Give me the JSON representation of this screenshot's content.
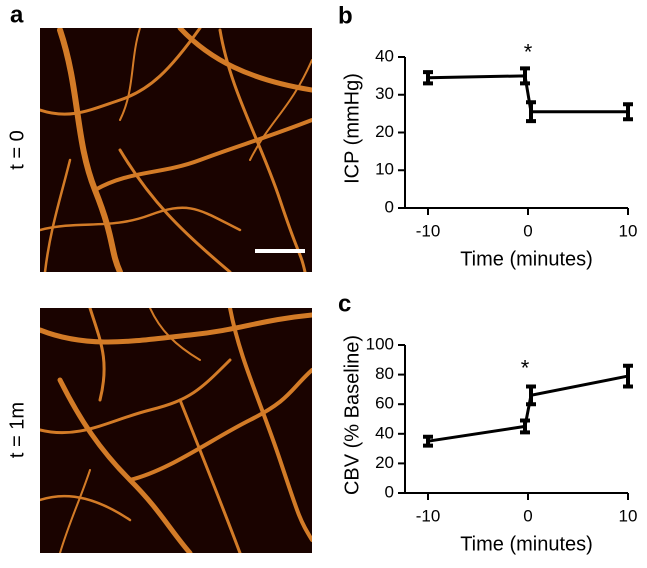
{
  "panel_a": {
    "label": "a",
    "images": [
      "t = 0",
      "t = 1m"
    ]
  },
  "chart_data": [
    {
      "type": "line",
      "panel_label": "b",
      "x_label": "Time (minutes)",
      "y_label": "ICP (mmHg)",
      "x": [
        -10,
        -0.3,
        0.3,
        10
      ],
      "series": [
        {
          "color": "#000000",
          "values": [
            34.5,
            35,
            25.5,
            25.5
          ],
          "errors": [
            1.5,
            2,
            2.5,
            2
          ]
        }
      ],
      "xlim": [
        -12.3,
        10
      ],
      "xticks": [
        -10,
        0,
        10
      ],
      "ylim": [
        0,
        40
      ],
      "yticks": [
        0,
        10,
        20,
        30,
        40
      ],
      "annotations": [
        {
          "text": "*",
          "x": 0,
          "y": 42
        }
      ]
    },
    {
      "type": "line",
      "panel_label": "c",
      "x_label": "Time (minutes)",
      "y_label": "CBV (% Baseline)",
      "x": [
        -10,
        -0.3,
        0.3,
        10
      ],
      "series": [
        {
          "color": "#000000",
          "values": [
            35,
            45,
            66,
            79
          ],
          "errors": [
            3,
            4,
            6,
            7
          ]
        }
      ],
      "xlim": [
        -12.3,
        10
      ],
      "xticks": [
        -10,
        0,
        10
      ],
      "ylim": [
        0,
        100
      ],
      "yticks": [
        0,
        20,
        40,
        60,
        80,
        100
      ],
      "annotations": [
        {
          "text": "*",
          "x": -0.3,
          "y": 86
        }
      ]
    }
  ]
}
